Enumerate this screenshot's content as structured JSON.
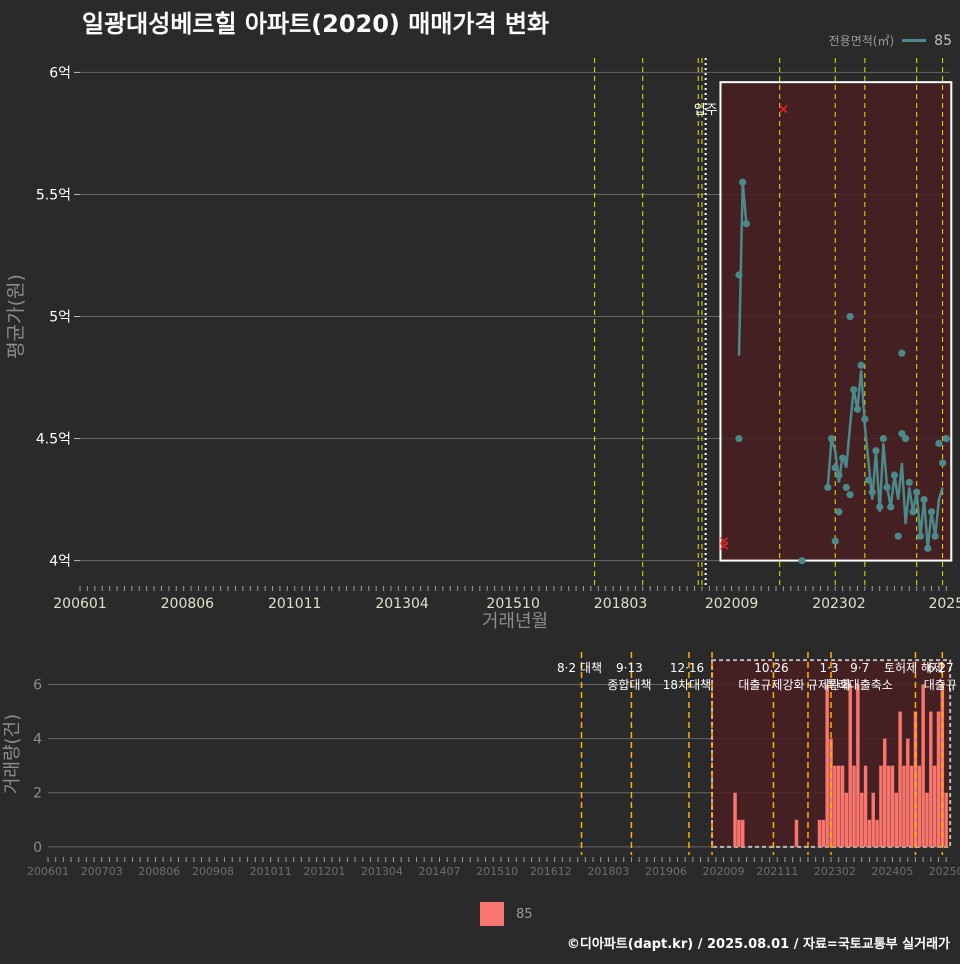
{
  "title": "일광대성베르힐 아파트(2020) 매매가격 변화",
  "credit": "©디아파트(dapt.kr) / 2025.08.01 / 자료=국토교통부 실거래가",
  "colors": {
    "background": "#2a2a2b",
    "grid": "#666666",
    "price_line": "#4a8a8a",
    "volume_bar": "#f8766d",
    "policy_line": "#e6e600",
    "policy_line_lower": "#ffb000",
    "highlight_fill": "#4a1f22",
    "cancel_marker": "#e62020"
  },
  "chart_data": [
    {
      "type": "line",
      "title": "일광대성베르힐 아파트(2020) 매매가격 변화",
      "xlabel": "거래년월",
      "ylabel": "평균가(원)",
      "y_tick_labels": [
        "4억",
        "4.5억",
        "5억",
        "5.5억",
        "6억"
      ],
      "y_ticks": [
        4.0,
        4.5,
        5.0,
        5.5,
        6.0
      ],
      "ylim": [
        3.9,
        6.1
      ],
      "x_tick_labels": [
        "200601",
        "200806",
        "201011",
        "201304",
        "201510",
        "201803",
        "202009",
        "202302",
        "2025"
      ],
      "x_ticks": [
        "2006-01",
        "2008-06",
        "2010-11",
        "2013-04",
        "2015-10",
        "2018-03",
        "2020-09",
        "2023-02",
        "2025-07"
      ],
      "xlim": [
        "2006-01",
        "2025-08"
      ],
      "grid": true,
      "legend": {
        "title": "전용면적(㎡)",
        "position": "top-right",
        "entries": [
          "85"
        ]
      },
      "policy_lines": [
        "2017-08",
        "2018-09",
        "2019-12",
        "2020-01",
        "2021-10",
        "2023-01",
        "2023-09",
        "2024-11",
        "2025-06"
      ],
      "move_in_label": "입주",
      "move_in_date": "2020-02",
      "highlight_box": {
        "x": [
          "2020-06",
          "2025-07"
        ],
        "y": [
          4.0,
          5.96
        ]
      },
      "series": [
        {
          "name": "85",
          "line": [
            [
              "2020-11",
              4.84
            ],
            [
              "2020-12",
              5.55
            ],
            [
              "2021-01",
              5.38
            ]
          ],
          "line2": [
            [
              "2022-11",
              4.3
            ],
            [
              "2022-12",
              4.5
            ],
            [
              "2023-01",
              4.45
            ],
            [
              "2023-02",
              4.32
            ],
            [
              "2023-03",
              4.43
            ],
            [
              "2023-04",
              4.38
            ],
            [
              "2023-05",
              4.55
            ],
            [
              "2023-06",
              4.7
            ],
            [
              "2023-07",
              4.62
            ],
            [
              "2023-08",
              4.78
            ],
            [
              "2023-09",
              4.55
            ],
            [
              "2023-10",
              4.4
            ],
            [
              "2023-11",
              4.25
            ],
            [
              "2023-12",
              4.45
            ],
            [
              "2024-01",
              4.2
            ],
            [
              "2024-02",
              4.48
            ],
            [
              "2024-03",
              4.3
            ],
            [
              "2024-04",
              4.22
            ],
            [
              "2024-05",
              4.35
            ],
            [
              "2024-06",
              4.25
            ],
            [
              "2024-07",
              4.4
            ],
            [
              "2024-08",
              4.15
            ],
            [
              "2024-09",
              4.3
            ],
            [
              "2024-10",
              4.2
            ],
            [
              "2024-11",
              4.28
            ],
            [
              "2024-12",
              4.1
            ],
            [
              "2025-01",
              4.25
            ],
            [
              "2025-02",
              4.05
            ],
            [
              "2025-03",
              4.2
            ],
            [
              "2025-04",
              4.1
            ],
            [
              "2025-05",
              4.25
            ],
            [
              "2025-06",
              4.3
            ]
          ],
          "points": [
            [
              "2020-11",
              5.17
            ],
            [
              "2020-11",
              4.5
            ],
            [
              "2020-12",
              5.55
            ],
            [
              "2021-01",
              5.38
            ],
            [
              "2022-04",
              4.0
            ],
            [
              "2022-11",
              4.3
            ],
            [
              "2022-12",
              4.5
            ],
            [
              "2023-01",
              4.08
            ],
            [
              "2023-01",
              4.38
            ],
            [
              "2023-02",
              4.2
            ],
            [
              "2023-02",
              4.35
            ],
            [
              "2023-03",
              4.42
            ],
            [
              "2023-04",
              4.3
            ],
            [
              "2023-05",
              4.27
            ],
            [
              "2023-05",
              5.0
            ],
            [
              "2023-06",
              4.7
            ],
            [
              "2023-07",
              4.62
            ],
            [
              "2023-08",
              4.8
            ],
            [
              "2023-09",
              4.58
            ],
            [
              "2023-10",
              4.33
            ],
            [
              "2023-11",
              4.28
            ],
            [
              "2023-12",
              4.45
            ],
            [
              "2024-01",
              4.22
            ],
            [
              "2024-02",
              4.5
            ],
            [
              "2024-03",
              4.3
            ],
            [
              "2024-04",
              4.22
            ],
            [
              "2024-05",
              4.35
            ],
            [
              "2024-06",
              4.1
            ],
            [
              "2024-07",
              4.85
            ],
            [
              "2024-07",
              4.52
            ],
            [
              "2024-08",
              4.5
            ],
            [
              "2024-09",
              4.32
            ],
            [
              "2024-10",
              4.2
            ],
            [
              "2024-11",
              4.28
            ],
            [
              "2024-12",
              4.1
            ],
            [
              "2025-01",
              4.25
            ],
            [
              "2025-02",
              4.05
            ],
            [
              "2025-03",
              4.2
            ],
            [
              "2025-04",
              4.1
            ],
            [
              "2025-05",
              4.48
            ],
            [
              "2025-06",
              4.4
            ],
            [
              "2025-07",
              4.5
            ]
          ],
          "cancelled": [
            [
              "2020-07",
              4.08
            ],
            [
              "2020-07",
              4.06
            ],
            [
              "2021-11",
              5.85
            ]
          ]
        }
      ]
    },
    {
      "type": "bar",
      "ylabel": "거래량(건)",
      "y_tick_labels": [
        "0",
        "2",
        "4",
        "6"
      ],
      "y_ticks": [
        0,
        2,
        4,
        6
      ],
      "ylim": [
        -0.3,
        7.2
      ],
      "x_tick_labels": [
        "200601",
        "200703",
        "200806",
        "200908",
        "201011",
        "201201",
        "201304",
        "201407",
        "201510",
        "201612",
        "201803",
        "201906",
        "202009",
        "202111",
        "202302",
        "202405",
        "20250"
      ],
      "x_ticks": [
        "2006-01",
        "2007-03",
        "2008-06",
        "2009-08",
        "2010-11",
        "2012-01",
        "2013-04",
        "2014-07",
        "2015-10",
        "2016-12",
        "2018-03",
        "2019-06",
        "2020-09",
        "2021-11",
        "2023-02",
        "2024-05",
        "2025-07"
      ],
      "xlim": [
        "2006-01",
        "2025-08"
      ],
      "legend": {
        "position": "bottom",
        "entries": [
          "85"
        ]
      },
      "policy_lines": [
        "2017-08",
        "2018-09",
        "2019-12",
        "2020-06",
        "2021-10",
        "2022-07",
        "2023-01",
        "2024-11",
        "2025-06"
      ],
      "policy_annotations": [
        {
          "date": "2017-08",
          "text": [
            "8·2 대책"
          ]
        },
        {
          "date": "2018-09",
          "text": [
            "9·13",
            "종합대책"
          ]
        },
        {
          "date": "2019-12",
          "text": [
            "12·16",
            "18차대책"
          ]
        },
        {
          "date": "2021-10",
          "text": [
            "10.26",
            "대출규제강화"
          ]
        },
        {
          "date": "2023-01",
          "text": [
            "1·3",
            "규제완화"
          ]
        },
        {
          "date": "2023-09",
          "text": [
            "9·7",
            "특례대출축소"
          ]
        },
        {
          "date": "2024-11",
          "text": [
            "토허제 해제"
          ]
        },
        {
          "date": "2025-06",
          "text": [
            "6.27",
            "대출규"
          ]
        }
      ],
      "highlight_box": {
        "x": [
          "2020-06",
          "2025-07"
        ],
        "y": [
          0,
          6.9
        ]
      },
      "series": [
        {
          "name": "85",
          "bars": [
            [
              "2020-12",
              2
            ],
            [
              "2021-01",
              1
            ],
            [
              "2021-02",
              1
            ],
            [
              "2022-04",
              1
            ],
            [
              "2022-10",
              1
            ],
            [
              "2022-11",
              1
            ],
            [
              "2022-12",
              6
            ],
            [
              "2023-01",
              4
            ],
            [
              "2023-02",
              3
            ],
            [
              "2023-03",
              3
            ],
            [
              "2023-04",
              3
            ],
            [
              "2023-05",
              2
            ],
            [
              "2023-06",
              6
            ],
            [
              "2023-07",
              3
            ],
            [
              "2023-08",
              6
            ],
            [
              "2023-09",
              2
            ],
            [
              "2023-10",
              3
            ],
            [
              "2023-11",
              1
            ],
            [
              "2023-12",
              2
            ],
            [
              "2024-01",
              1
            ],
            [
              "2024-02",
              3
            ],
            [
              "2024-03",
              4
            ],
            [
              "2024-04",
              3
            ],
            [
              "2024-05",
              3
            ],
            [
              "2024-06",
              2
            ],
            [
              "2024-07",
              5
            ],
            [
              "2024-08",
              3
            ],
            [
              "2024-09",
              4
            ],
            [
              "2024-10",
              3
            ],
            [
              "2024-11",
              5
            ],
            [
              "2024-12",
              3
            ],
            [
              "2025-01",
              6
            ],
            [
              "2025-02",
              2
            ],
            [
              "2025-03",
              5
            ],
            [
              "2025-04",
              3
            ],
            [
              "2025-05",
              5
            ],
            [
              "2025-06",
              6
            ],
            [
              "2025-07",
              2
            ]
          ]
        }
      ]
    }
  ]
}
